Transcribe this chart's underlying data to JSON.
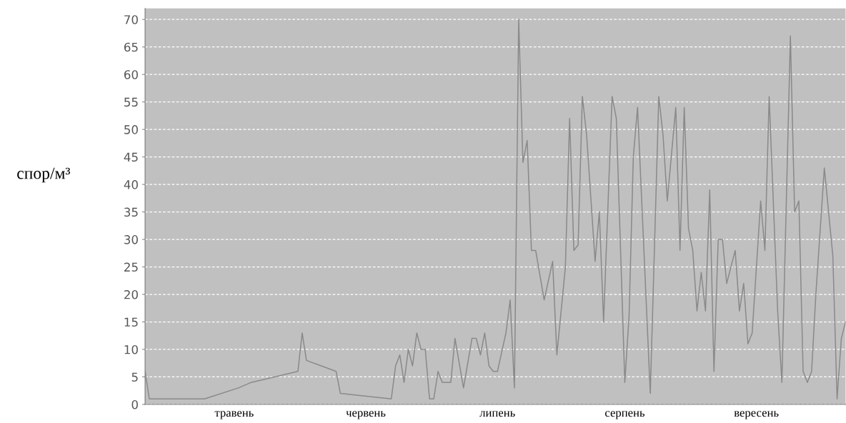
{
  "chart_data": {
    "type": "line",
    "ylabel": "спор/м³",
    "categories": [
      null,
      null,
      null,
      null,
      null,
      null,
      null,
      null,
      null,
      null,
      null,
      null,
      null,
      null,
      null,
      null,
      null,
      null,
      null,
      null,
      null,
      "травень",
      null,
      null,
      null,
      null,
      null,
      null,
      null,
      null,
      null,
      null,
      null,
      null,
      null,
      null,
      null,
      null,
      null,
      null,
      null,
      null,
      null,
      null,
      null,
      null,
      null,
      null,
      null,
      null,
      null,
      null,
      "червень",
      null,
      null,
      null,
      null,
      null,
      null,
      null,
      null,
      null,
      null,
      null,
      null,
      null,
      null,
      null,
      null,
      null,
      null,
      null,
      null,
      null,
      null,
      null,
      null,
      null,
      null,
      null,
      null,
      null,
      null,
      "липень",
      null,
      null,
      null,
      null,
      null,
      null,
      null,
      null,
      null,
      null,
      null,
      null,
      null,
      null,
      null,
      null,
      null,
      null,
      null,
      null,
      null,
      null,
      null,
      null,
      null,
      null,
      null,
      null,
      null,
      "серпень",
      null,
      null,
      null,
      null,
      null,
      null,
      null,
      null,
      null,
      null,
      null,
      null,
      null,
      null,
      null,
      null,
      null,
      null,
      null,
      null,
      null,
      null,
      null,
      null,
      null,
      null,
      null,
      null,
      null,
      null,
      "вересень",
      null,
      null,
      null,
      null,
      null,
      null,
      null,
      null,
      null,
      null,
      null,
      null,
      null,
      null,
      null,
      null,
      null,
      null,
      null,
      null,
      null
    ],
    "series": [
      {
        "color": "#8a8a8a",
        "values": [
          6,
          1,
          null,
          null,
          null,
          null,
          null,
          null,
          null,
          null,
          null,
          null,
          null,
          null,
          1,
          null,
          null,
          null,
          null,
          null,
          null,
          null,
          3,
          null,
          null,
          4,
          null,
          null,
          null,
          null,
          null,
          null,
          null,
          null,
          null,
          null,
          6,
          13,
          8,
          null,
          null,
          null,
          null,
          null,
          null,
          6,
          2,
          null,
          null,
          null,
          null,
          null,
          null,
          null,
          null,
          null,
          null,
          null,
          1,
          7,
          9,
          4,
          10,
          7,
          13,
          10,
          10,
          1,
          1,
          6,
          4,
          null,
          4,
          12,
          null,
          3,
          null,
          12,
          12,
          9,
          13,
          7,
          6,
          6,
          null,
          13,
          19,
          3,
          70,
          44,
          48,
          28,
          28,
          null,
          19,
          null,
          26,
          9,
          null,
          25,
          52,
          28,
          29,
          56,
          49,
          null,
          26,
          35,
          15,
          null,
          56,
          52,
          null,
          4,
          16,
          45,
          54,
          null,
          null,
          2,
          null,
          56,
          49,
          37,
          null,
          54,
          28,
          54,
          32,
          28,
          17,
          24,
          17,
          39,
          6,
          30,
          30,
          22,
          null,
          28,
          17,
          22,
          11,
          13,
          null,
          37,
          28,
          56,
          null,
          17,
          4,
          null,
          67,
          35,
          37,
          6,
          4,
          6,
          20,
          null,
          43,
          null,
          27,
          1,
          12,
          15
        ]
      }
    ],
    "ylim": [
      0,
      72
    ],
    "yticks": [
      0,
      5,
      10,
      15,
      20,
      25,
      30,
      35,
      40,
      45,
      50,
      55,
      60,
      65,
      70
    ],
    "grid": "y",
    "line_style": "solid"
  }
}
